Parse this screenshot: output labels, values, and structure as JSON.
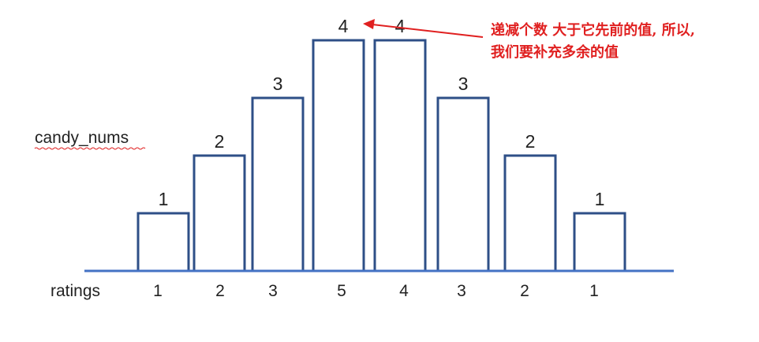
{
  "candy_label": "candy_nums",
  "ratings_label": "ratings",
  "annotation": {
    "line1": "递减个数 大于它先前的值, 所以,",
    "line2": "我们要补充多余的值"
  },
  "colors": {
    "bar": "#2e4f87",
    "baseline": "#4472c4",
    "annotation": "#e02020",
    "text": "#222222"
  },
  "chart_data": {
    "type": "bar",
    "categories": [
      "1",
      "2",
      "3",
      "5",
      "4",
      "3",
      "2",
      "1"
    ],
    "values": [
      1,
      2,
      3,
      4,
      4,
      3,
      2,
      1
    ],
    "xlabel": "ratings",
    "ylabel": "candy_nums"
  }
}
